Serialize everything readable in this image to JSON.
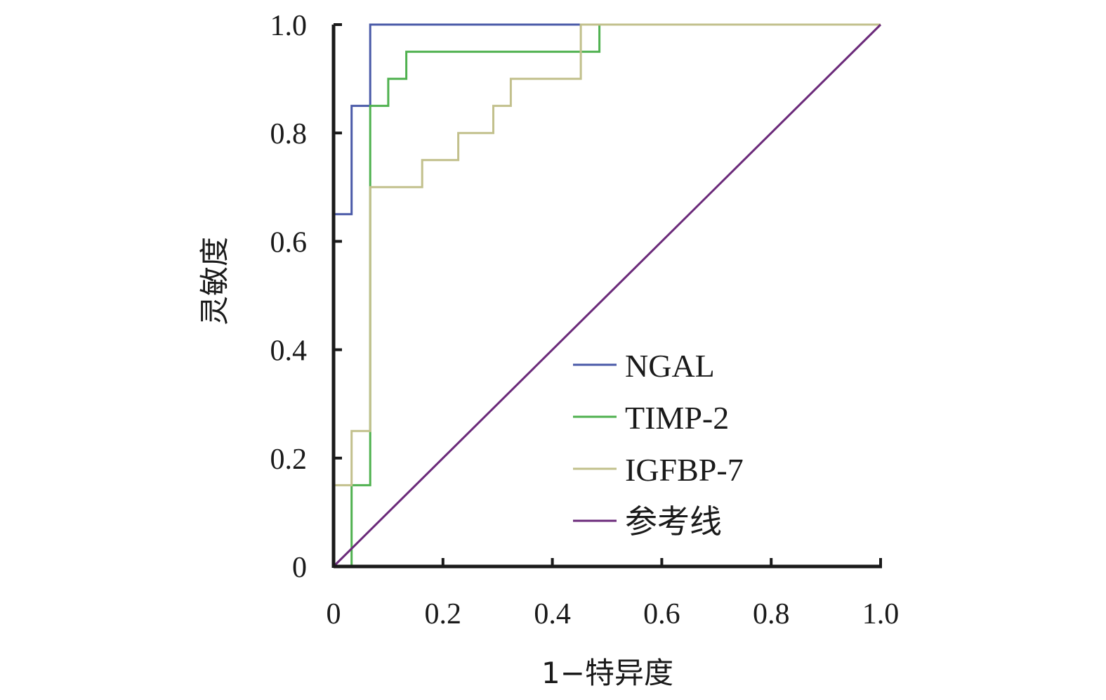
{
  "chart_data": {
    "type": "line",
    "title": "",
    "xlabel": "1−特异度",
    "ylabel": "灵敏度",
    "xlim": [
      0,
      1.0
    ],
    "ylim": [
      0,
      1.0
    ],
    "grid": false,
    "legend_position": "bottom-right",
    "x_ticks": [
      "0",
      "0.2",
      "0.4",
      "0.6",
      "0.8",
      "1.0"
    ],
    "y_ticks": [
      "0",
      "0.2",
      "0.4",
      "0.6",
      "0.8",
      "1.0"
    ],
    "series": [
      {
        "name": "NGAL",
        "color": "#4a5aa8",
        "x": [
          0,
          0,
          0.033,
          0.033,
          0.067,
          0.067,
          1.0
        ],
        "y": [
          0,
          0.65,
          0.65,
          0.85,
          0.85,
          1.0,
          1.0
        ]
      },
      {
        "name": "TIMP-2",
        "color": "#4fb14f",
        "x": [
          0,
          0.033,
          0.033,
          0.067,
          0.067,
          0.1,
          0.1,
          0.133,
          0.133,
          0.486,
          0.486,
          1.0
        ],
        "y": [
          0,
          0,
          0.15,
          0.15,
          0.85,
          0.85,
          0.9,
          0.9,
          0.95,
          0.95,
          1.0,
          1.0
        ]
      },
      {
        "name": "IGFBP-7",
        "color": "#c2c08c",
        "x": [
          0,
          0,
          0.033,
          0.033,
          0.067,
          0.067,
          0.162,
          0.162,
          0.228,
          0.228,
          0.292,
          0.292,
          0.324,
          0.324,
          0.452,
          0.452,
          1.0
        ],
        "y": [
          0,
          0.15,
          0.15,
          0.25,
          0.25,
          0.7,
          0.7,
          0.75,
          0.75,
          0.8,
          0.8,
          0.85,
          0.85,
          0.9,
          0.9,
          1.0,
          1.0
        ]
      },
      {
        "name": "参考线",
        "color": "#6b2a7a",
        "x": [
          0,
          1.0
        ],
        "y": [
          0,
          1.0
        ]
      }
    ]
  }
}
